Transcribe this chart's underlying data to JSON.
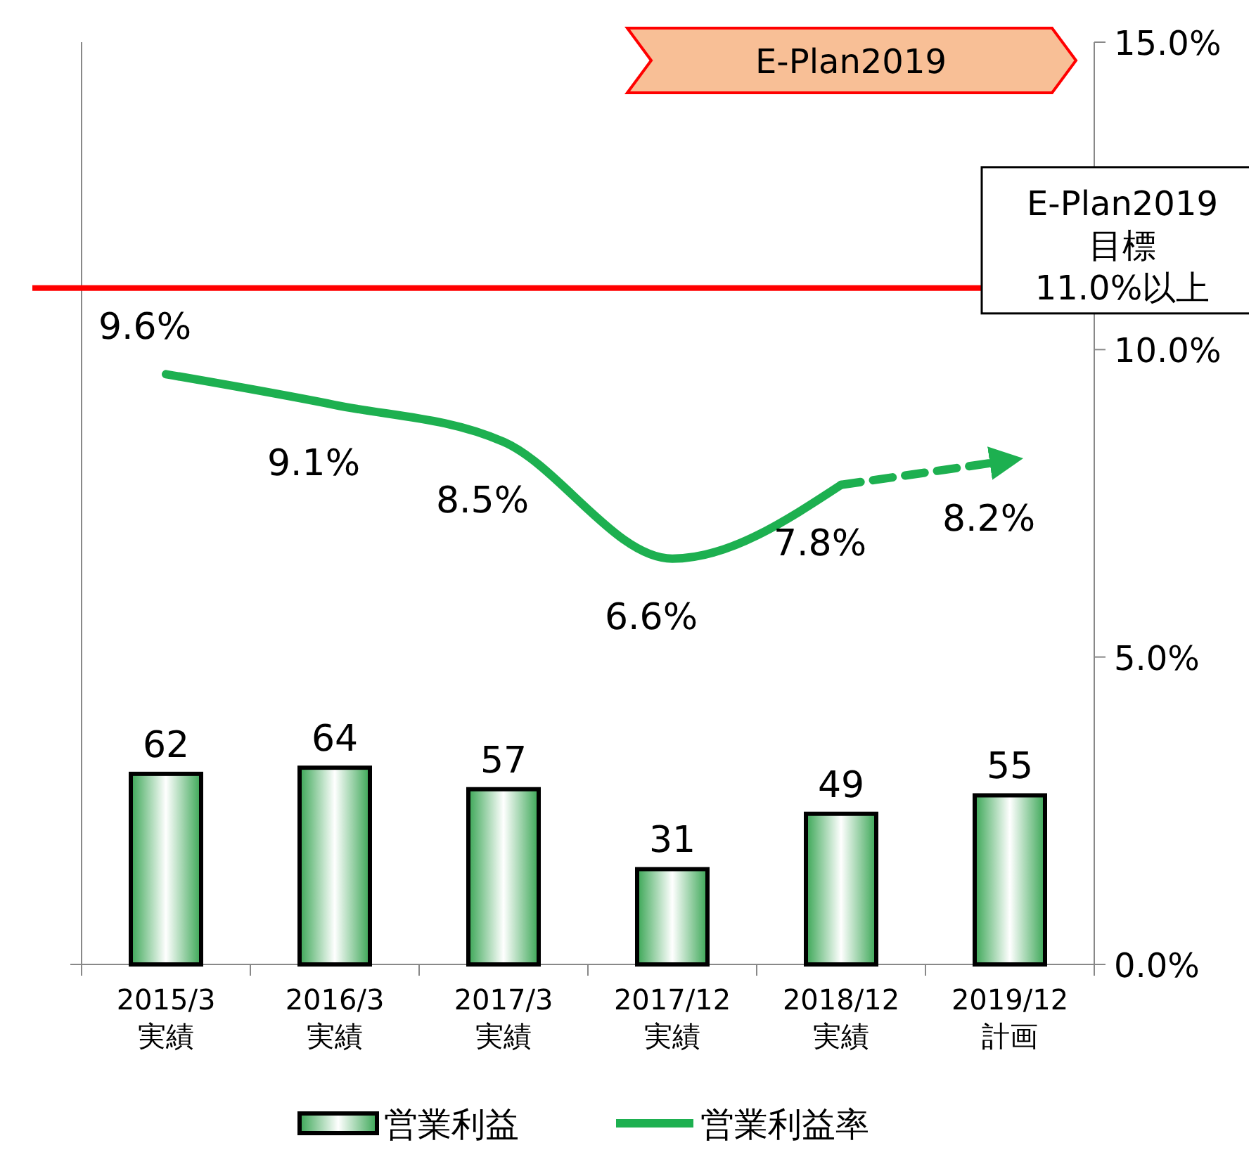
{
  "chart_data": {
    "type": "bar",
    "categories": [
      "2015/3\n実績",
      "2016/3\n実績",
      "2017/3\n実績",
      "2017/12\n実績",
      "2018/12\n実績",
      "2019/12\n計画"
    ],
    "series": [
      {
        "name": "営業利益",
        "color": "#3aa655",
        "values": [
          62,
          64,
          57,
          31,
          49,
          55
        ],
        "value_labels": [
          "62",
          "64",
          "57",
          "31",
          "49",
          "55"
        ]
      },
      {
        "name": "営業利益率",
        "type": "line",
        "axis": "y2",
        "color": "#1db050",
        "values": [
          9.6,
          9.1,
          8.5,
          6.6,
          7.8,
          null
        ],
        "value_labels": [
          "9.6%",
          "9.1%",
          "8.5%",
          "6.6%",
          "7.8%",
          null
        ]
      },
      {
        "type": "line",
        "axis": "y2",
        "color": "#1db050",
        "line_style": "dashed",
        "values": [
          null,
          null,
          null,
          null,
          7.8,
          8.2
        ],
        "value_labels": [
          null,
          null,
          null,
          null,
          null,
          "8.2%"
        ]
      }
    ],
    "ylim": [
      0,
      300
    ],
    "y2lim": [
      0,
      15
    ],
    "y2ticks": [
      {
        "value": 0,
        "label": "0.0%"
      },
      {
        "value": 5,
        "label": "5.0%"
      },
      {
        "value": 10,
        "label": "10.0%"
      },
      {
        "value": 15,
        "label": "15.0%"
      }
    ],
    "ref_lines": [
      {
        "axis": "y2",
        "value": 11,
        "label": "E-Plan2019\n目標\n11.0%以上",
        "color": "#ff0000"
      }
    ],
    "annotations": [
      "E-Plan2019"
    ],
    "legend": "bottom",
    "grid": false
  }
}
